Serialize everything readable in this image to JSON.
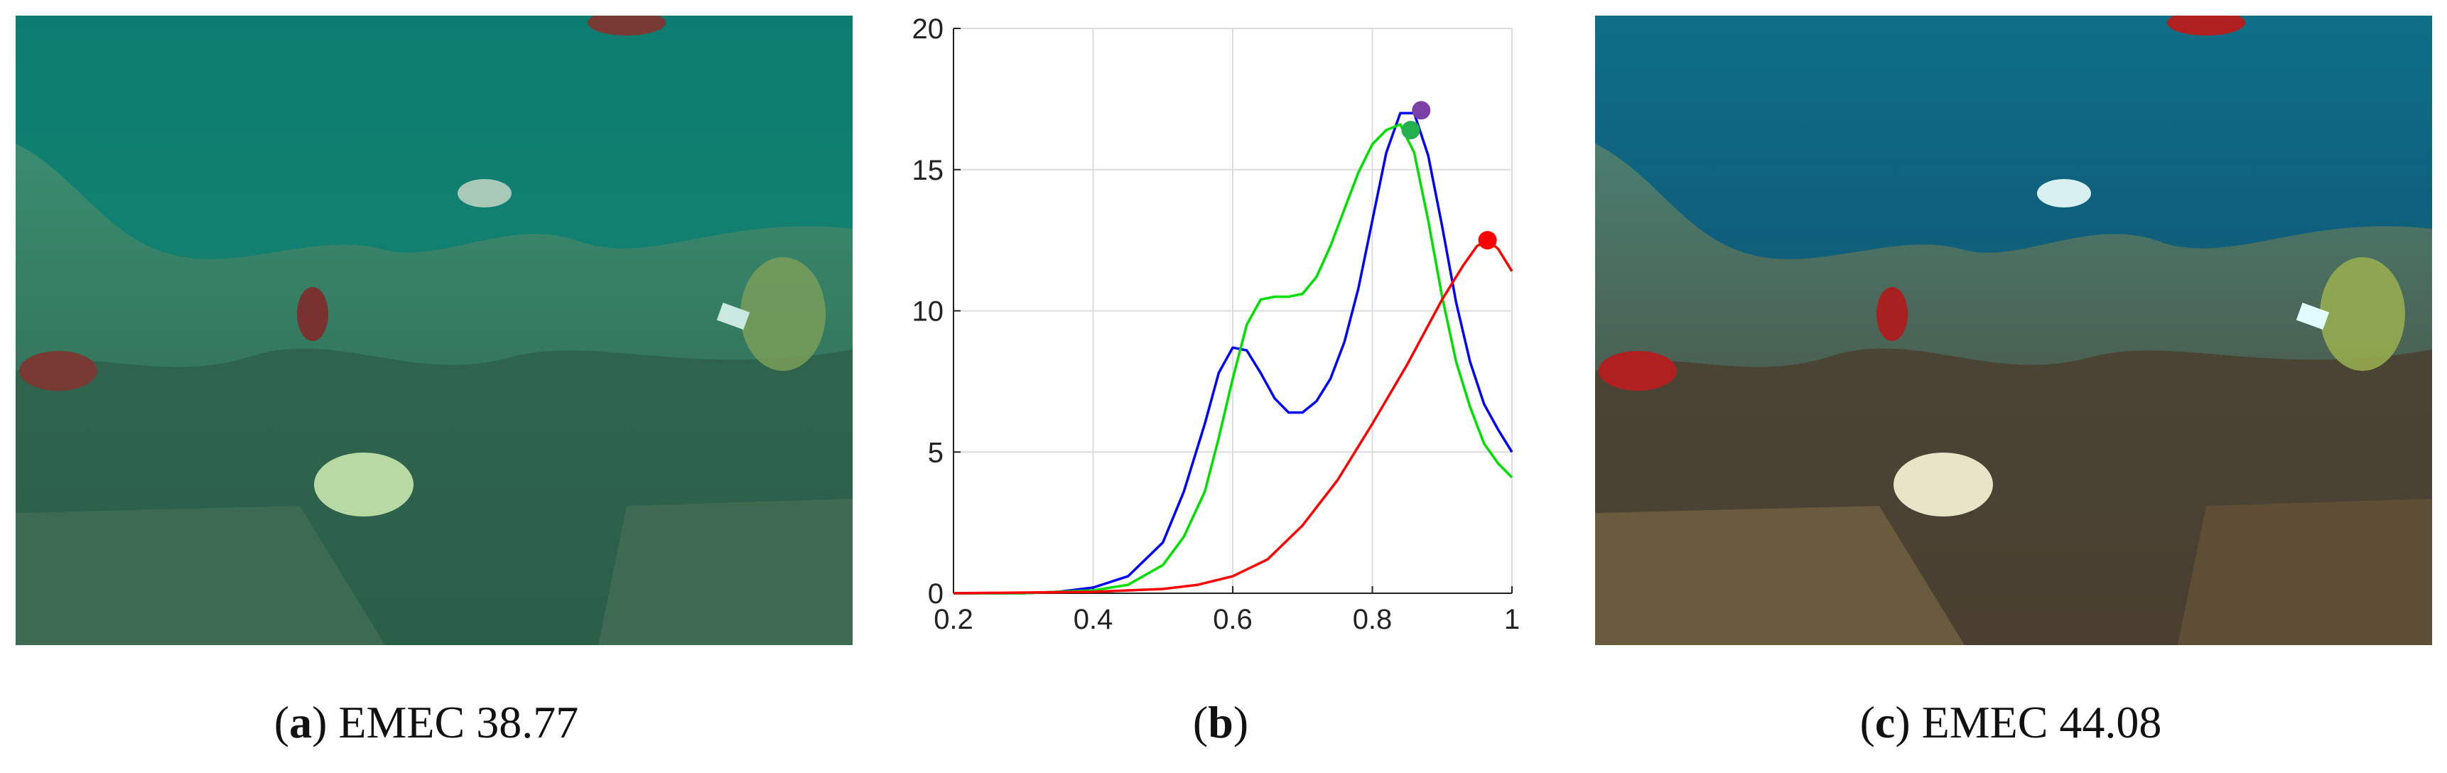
{
  "captions": {
    "a": {
      "letter": "a",
      "text": "EMEC 38.77"
    },
    "b": {
      "letter": "b",
      "text": ""
    },
    "c": {
      "letter": "c",
      "text": "EMEC 44.08"
    }
  },
  "images": {
    "a": {
      "description_colors": [
        "#0e7e72",
        "#2f8a74",
        "#4a8f6a"
      ]
    },
    "c": {
      "description_colors": [
        "#0b5f7a",
        "#3a6e58",
        "#8a5a3a"
      ]
    }
  },
  "chart_data": {
    "type": "line",
    "title": "",
    "xlabel": "",
    "ylabel": "",
    "xlim": [
      0.2,
      1.0
    ],
    "ylim": [
      0,
      20
    ],
    "xticks": [
      "0.2",
      "0.4",
      "0.6",
      "0.8",
      "1"
    ],
    "yticks": [
      "0",
      "5",
      "10",
      "15",
      "20"
    ],
    "grid": true,
    "series": [
      {
        "color": "#0000ff",
        "x": [
          0.2,
          0.3,
          0.35,
          0.4,
          0.45,
          0.5,
          0.53,
          0.56,
          0.58,
          0.6,
          0.62,
          0.64,
          0.66,
          0.68,
          0.7,
          0.72,
          0.74,
          0.76,
          0.78,
          0.8,
          0.82,
          0.84,
          0.86,
          0.88,
          0.9,
          0.92,
          0.94,
          0.96,
          0.98,
          1.0
        ],
        "y": [
          0,
          0,
          0.05,
          0.2,
          0.6,
          1.8,
          3.6,
          6.0,
          7.8,
          8.7,
          8.6,
          7.8,
          6.9,
          6.4,
          6.4,
          6.8,
          7.6,
          8.9,
          10.8,
          13.2,
          15.6,
          17.0,
          17.0,
          15.5,
          13.0,
          10.3,
          8.2,
          6.7,
          5.8,
          5.0
        ],
        "marker": {
          "x": 0.87,
          "y": 17.1,
          "color": "#7b3fa6"
        }
      },
      {
        "color": "#00e000",
        "x": [
          0.2,
          0.3,
          0.4,
          0.45,
          0.5,
          0.53,
          0.56,
          0.58,
          0.6,
          0.62,
          0.64,
          0.66,
          0.68,
          0.7,
          0.72,
          0.74,
          0.76,
          0.78,
          0.8,
          0.82,
          0.84,
          0.86,
          0.88,
          0.9,
          0.92,
          0.94,
          0.96,
          0.98,
          1.0
        ],
        "y": [
          0,
          0,
          0.1,
          0.3,
          1.0,
          2.0,
          3.6,
          5.5,
          7.6,
          9.5,
          10.4,
          10.5,
          10.5,
          10.6,
          11.2,
          12.3,
          13.6,
          14.9,
          15.9,
          16.4,
          16.6,
          15.6,
          13.2,
          10.5,
          8.2,
          6.6,
          5.3,
          4.6,
          4.1
        ],
        "marker": {
          "x": 0.855,
          "y": 16.4,
          "color": "#22b14c"
        }
      },
      {
        "color": "#ff0000",
        "x": [
          0.2,
          0.4,
          0.5,
          0.55,
          0.6,
          0.65,
          0.7,
          0.75,
          0.8,
          0.85,
          0.9,
          0.93,
          0.95,
          0.965,
          0.98,
          1.0
        ],
        "y": [
          0,
          0.05,
          0.15,
          0.3,
          0.6,
          1.2,
          2.4,
          4.0,
          6.0,
          8.1,
          10.4,
          11.6,
          12.3,
          12.5,
          12.2,
          11.4
        ],
        "marker": {
          "x": 0.965,
          "y": 12.5,
          "color": "#ff0000"
        }
      }
    ]
  }
}
